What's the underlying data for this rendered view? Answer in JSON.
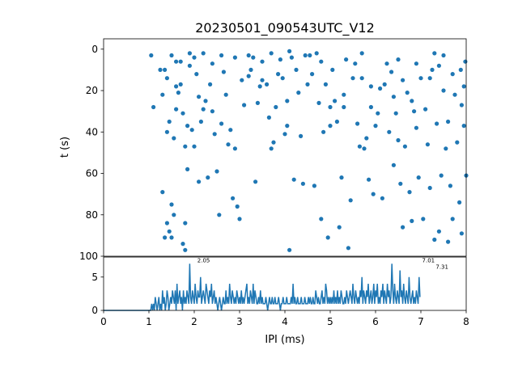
{
  "chart_data": [
    {
      "type": "scatter",
      "title": "20230501_090543UTC_V12",
      "ylabel": "t (s)",
      "xlim": [
        0,
        8
      ],
      "ylim": [
        100,
        -5
      ],
      "y_inverted": true,
      "yticks": [
        0,
        20,
        40,
        60,
        80,
        100
      ],
      "color": "#1f77b4",
      "marker": "point",
      "points": [
        [
          1.05,
          3
        ],
        [
          1.1,
          28
        ],
        [
          1.25,
          10
        ],
        [
          1.3,
          22
        ],
        [
          1.3,
          69
        ],
        [
          1.35,
          91
        ],
        [
          1.4,
          84
        ],
        [
          1.45,
          88
        ],
        [
          1.5,
          75
        ],
        [
          1.5,
          91
        ],
        [
          1.55,
          80
        ],
        [
          1.4,
          40
        ],
        [
          1.45,
          35
        ],
        [
          1.35,
          10
        ],
        [
          1.55,
          43
        ],
        [
          1.6,
          29
        ],
        [
          1.6,
          18
        ],
        [
          1.65,
          21
        ],
        [
          1.7,
          6
        ],
        [
          1.75,
          31
        ],
        [
          1.8,
          47
        ],
        [
          1.85,
          37
        ],
        [
          1.8,
          84
        ],
        [
          1.75,
          94
        ],
        [
          1.8,
          97
        ],
        [
          1.85,
          58
        ],
        [
          1.9,
          8
        ],
        [
          1.95,
          39
        ],
        [
          2.0,
          47
        ],
        [
          2.05,
          12
        ],
        [
          2.1,
          64
        ],
        [
          2.1,
          23
        ],
        [
          2.15,
          35
        ],
        [
          2.2,
          29
        ],
        [
          2.25,
          25
        ],
        [
          2.3,
          62
        ],
        [
          2.35,
          17
        ],
        [
          2.4,
          30
        ],
        [
          2.45,
          41
        ],
        [
          2.5,
          59
        ],
        [
          2.55,
          80
        ],
        [
          2.6,
          36
        ],
        [
          2.65,
          11
        ],
        [
          2.7,
          22
        ],
        [
          2.75,
          46
        ],
        [
          2.8,
          39
        ],
        [
          2.85,
          72
        ],
        [
          2.9,
          4
        ],
        [
          2.9,
          48
        ],
        [
          2.95,
          76
        ],
        [
          3.0,
          82
        ],
        [
          3.05,
          15
        ],
        [
          3.1,
          27
        ],
        [
          3.2,
          13
        ],
        [
          3.25,
          10
        ],
        [
          3.3,
          4
        ],
        [
          3.35,
          64
        ],
        [
          3.4,
          26
        ],
        [
          3.45,
          18
        ],
        [
          3.5,
          6
        ],
        [
          3.6,
          17
        ],
        [
          3.65,
          33
        ],
        [
          3.7,
          48
        ],
        [
          3.75,
          45
        ],
        [
          3.8,
          28
        ],
        [
          3.85,
          12
        ],
        [
          3.9,
          5
        ],
        [
          3.95,
          14
        ],
        [
          4.0,
          41
        ],
        [
          4.05,
          25
        ],
        [
          4.1,
          97
        ],
        [
          4.05,
          37
        ],
        [
          4.15,
          4
        ],
        [
          4.2,
          63
        ],
        [
          4.25,
          10
        ],
        [
          4.3,
          21
        ],
        [
          4.35,
          42
        ],
        [
          4.4,
          65
        ],
        [
          4.45,
          3
        ],
        [
          4.5,
          17
        ],
        [
          4.55,
          3
        ],
        [
          4.6,
          12
        ],
        [
          4.65,
          66
        ],
        [
          4.7,
          2
        ],
        [
          4.75,
          26
        ],
        [
          4.8,
          82
        ],
        [
          4.85,
          40
        ],
        [
          4.9,
          17
        ],
        [
          4.95,
          91
        ],
        [
          5.0,
          28
        ],
        [
          5.05,
          10
        ],
        [
          5.1,
          25
        ],
        [
          5.15,
          35
        ],
        [
          5.2,
          86
        ],
        [
          5.25,
          62
        ],
        [
          5.3,
          28
        ],
        [
          5.35,
          5
        ],
        [
          5.4,
          96
        ],
        [
          5.45,
          73
        ],
        [
          5.5,
          14
        ],
        [
          5.55,
          7
        ],
        [
          5.6,
          36
        ],
        [
          5.65,
          47
        ],
        [
          5.7,
          2
        ],
        [
          5.75,
          48
        ],
        [
          5.8,
          43
        ],
        [
          5.85,
          63
        ],
        [
          5.9,
          28
        ],
        [
          5.95,
          70
        ],
        [
          6.0,
          37
        ],
        [
          6.05,
          31
        ],
        [
          6.1,
          19
        ],
        [
          6.15,
          72
        ],
        [
          6.2,
          17
        ],
        [
          6.25,
          7
        ],
        [
          6.3,
          40
        ],
        [
          6.35,
          11
        ],
        [
          6.4,
          56
        ],
        [
          6.45,
          31
        ],
        [
          6.5,
          44
        ],
        [
          6.55,
          65
        ],
        [
          6.6,
          86
        ],
        [
          6.65,
          47
        ],
        [
          6.7,
          21
        ],
        [
          6.75,
          69
        ],
        [
          6.8,
          83
        ],
        [
          6.85,
          30
        ],
        [
          6.9,
          38
        ],
        [
          6.95,
          62
        ],
        [
          7.0,
          14
        ],
        [
          7.05,
          82
        ],
        [
          7.1,
          29
        ],
        [
          7.15,
          46
        ],
        [
          7.2,
          67
        ],
        [
          7.25,
          10
        ],
        [
          7.3,
          92
        ],
        [
          7.35,
          36
        ],
        [
          7.4,
          88
        ],
        [
          7.45,
          61
        ],
        [
          7.5,
          3
        ],
        [
          7.55,
          48
        ],
        [
          7.6,
          93
        ],
        [
          7.65,
          66
        ],
        [
          7.7,
          82
        ],
        [
          7.75,
          22
        ],
        [
          7.8,
          45
        ],
        [
          7.85,
          74
        ],
        [
          7.9,
          89
        ],
        [
          7.95,
          37
        ],
        [
          8.0,
          61
        ],
        [
          7.95,
          18
        ],
        [
          7.9,
          27
        ],
        [
          7.88,
          10
        ],
        [
          7.98,
          6
        ],
        [
          7.7,
          12
        ],
        [
          7.6,
          35
        ],
        [
          7.5,
          20
        ],
        [
          7.4,
          8
        ],
        [
          7.3,
          2
        ],
        [
          7.2,
          14
        ],
        [
          6.9,
          7
        ],
        [
          6.8,
          25
        ],
        [
          6.6,
          15
        ],
        [
          6.5,
          5
        ],
        [
          6.4,
          23
        ],
        [
          5.9,
          18
        ],
        [
          5.7,
          14
        ],
        [
          5.3,
          22
        ],
        [
          5.0,
          37
        ],
        [
          4.8,
          6
        ],
        [
          4.1,
          1
        ],
        [
          3.7,
          2
        ],
        [
          3.5,
          15
        ],
        [
          3.2,
          3
        ],
        [
          2.6,
          3
        ],
        [
          2.4,
          7
        ],
        [
          2.2,
          2
        ],
        [
          2.0,
          4
        ],
        [
          1.9,
          2
        ],
        [
          1.7,
          17
        ],
        [
          1.6,
          6
        ],
        [
          1.5,
          3
        ],
        [
          1.4,
          14
        ]
      ]
    },
    {
      "type": "line",
      "xlabel": "IPI (ms)",
      "xlim": [
        0,
        8
      ],
      "ylim": [
        0,
        8
      ],
      "xticks": [
        0,
        1,
        2,
        3,
        4,
        5,
        6,
        7,
        8
      ],
      "yticks": [
        0,
        5
      ],
      "color": "#1f77b4",
      "bin_width": 0.02,
      "x_start": 0,
      "values": [
        0,
        0,
        0,
        0,
        0,
        0,
        0,
        0,
        0,
        0,
        0,
        0,
        0,
        0,
        0,
        0,
        0,
        0,
        0,
        0,
        0,
        0,
        0,
        0,
        0,
        0,
        0,
        0,
        0,
        0,
        0,
        0,
        0,
        0,
        0,
        0,
        0,
        0,
        0,
        0,
        0,
        0,
        0,
        0,
        0,
        0,
        0,
        0,
        0,
        0,
        0,
        0,
        0,
        1,
        0,
        1,
        0,
        2,
        1,
        0,
        1,
        2,
        0,
        1,
        0,
        3,
        1,
        2,
        0,
        1,
        3,
        2,
        0,
        1,
        2,
        1,
        3,
        2,
        1,
        3,
        0,
        4,
        1,
        2,
        3,
        1,
        2,
        0,
        3,
        1,
        2,
        1,
        3,
        2,
        1,
        7,
        2,
        1,
        3,
        2,
        1,
        4,
        2,
        1,
        3,
        2,
        2,
        5,
        1,
        2,
        3,
        2,
        1,
        4,
        3,
        2,
        1,
        3,
        2,
        4,
        1,
        2,
        3,
        1,
        2,
        1,
        0,
        1,
        2,
        1,
        0,
        1,
        2,
        1,
        1,
        3,
        1,
        2,
        1,
        4,
        2,
        1,
        3,
        2,
        1,
        2,
        1,
        3,
        2,
        1,
        2,
        1,
        3,
        1,
        2,
        1,
        2,
        3,
        4,
        1,
        2,
        1,
        3,
        2,
        1,
        4,
        1,
        3,
        2,
        1,
        1,
        2,
        1,
        3,
        1,
        2,
        1,
        1,
        1,
        2,
        1,
        0,
        1,
        2,
        1,
        1,
        2,
        1,
        1,
        2,
        1,
        1,
        1,
        2,
        1,
        0,
        1,
        1,
        2,
        1,
        1,
        1,
        2,
        1,
        1,
        1,
        1,
        2,
        1,
        4,
        1,
        2,
        1,
        1,
        2,
        1,
        1,
        1,
        2,
        1,
        1,
        1,
        2,
        1,
        1,
        1,
        2,
        1,
        2,
        1,
        1,
        2,
        1,
        1,
        3,
        2,
        1,
        2,
        1,
        1,
        2,
        3,
        1,
        2,
        1,
        4,
        3,
        1,
        2,
        1,
        2,
        1,
        2,
        1,
        3,
        1,
        2,
        1,
        3,
        1,
        2,
        1,
        3,
        2,
        1,
        1,
        2,
        1,
        3,
        2,
        1,
        2,
        3,
        2,
        1,
        4,
        2,
        1,
        3,
        2,
        1,
        2,
        1,
        3,
        2,
        5,
        1,
        3,
        2,
        1,
        3,
        2,
        4,
        1,
        2,
        3,
        1,
        2,
        4,
        1,
        3,
        2,
        4,
        1,
        2,
        1,
        3,
        2,
        4,
        1,
        3,
        2,
        1,
        4,
        2,
        3,
        1,
        2,
        7,
        3,
        1,
        4,
        2,
        1,
        3,
        2,
        1,
        6,
        2,
        3,
        1,
        4,
        2,
        1,
        3,
        2,
        1,
        5,
        2,
        1,
        2,
        3,
        1,
        2,
        1,
        3,
        2,
        1,
        5,
        2
      ]
    }
  ],
  "annotations": [
    {
      "x": 2.05,
      "y": 7,
      "label": "2.05"
    },
    {
      "x": 7.01,
      "y": 7,
      "label": "7.01"
    },
    {
      "x": 7.31,
      "y": 6,
      "label": "7.31"
    }
  ]
}
